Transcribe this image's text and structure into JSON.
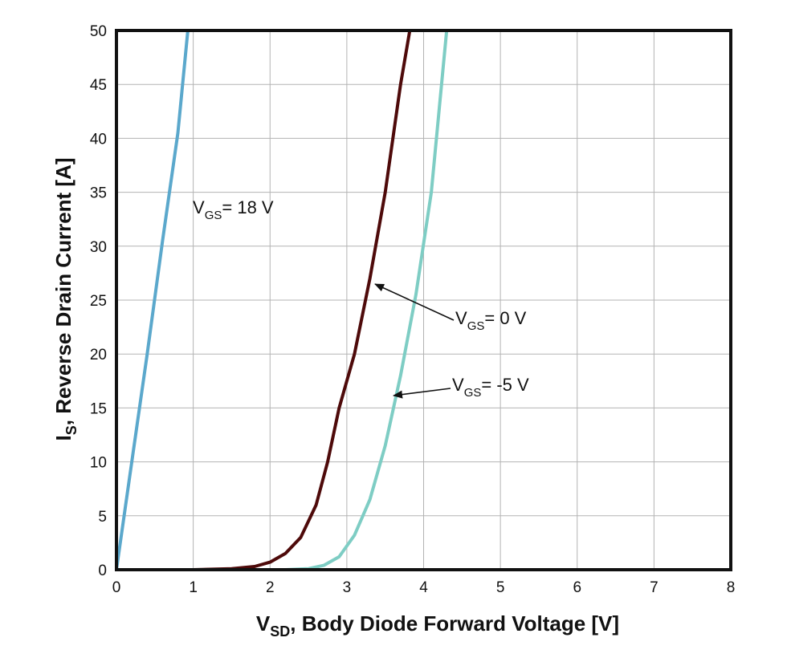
{
  "chart_data": {
    "type": "line",
    "xlabel": {
      "main": "V",
      "sub": "SD",
      "rest": ", Body Diode Forward Voltage [V]"
    },
    "ylabel": {
      "main": "I",
      "sub": "S",
      "rest": ", Reverse Drain Current [A]"
    },
    "xlim": [
      0,
      8
    ],
    "ylim": [
      0,
      50
    ],
    "x_ticks": [
      0,
      1,
      2,
      3,
      4,
      5,
      6,
      7,
      8
    ],
    "y_ticks": [
      0,
      5,
      10,
      15,
      20,
      25,
      30,
      35,
      40,
      45,
      50
    ],
    "grid": true,
    "series": [
      {
        "color": "#5ba8cc",
        "points": [
          [
            0,
            0
          ],
          [
            0.2,
            10
          ],
          [
            0.4,
            20
          ],
          [
            0.6,
            30.5
          ],
          [
            0.8,
            40.5
          ],
          [
            0.93,
            50
          ]
        ]
      },
      {
        "color": "#4e0a0a",
        "points": [
          [
            0,
            0
          ],
          [
            1.0,
            0
          ],
          [
            1.5,
            0.1
          ],
          [
            1.8,
            0.3
          ],
          [
            2.0,
            0.7
          ],
          [
            2.2,
            1.5
          ],
          [
            2.4,
            3.0
          ],
          [
            2.6,
            6.0
          ],
          [
            2.75,
            10.0
          ],
          [
            2.9,
            15.0
          ],
          [
            3.1,
            20.0
          ],
          [
            3.3,
            27.0
          ],
          [
            3.5,
            35.0
          ],
          [
            3.7,
            45.0
          ],
          [
            3.82,
            50.0
          ]
        ]
      },
      {
        "color": "#7ecdc4",
        "points": [
          [
            0,
            0
          ],
          [
            2.2,
            0
          ],
          [
            2.5,
            0.1
          ],
          [
            2.7,
            0.4
          ],
          [
            2.9,
            1.2
          ],
          [
            3.1,
            3.2
          ],
          [
            3.3,
            6.5
          ],
          [
            3.5,
            11.5
          ],
          [
            3.7,
            18.0
          ],
          [
            3.9,
            25.5
          ],
          [
            4.1,
            35.0
          ],
          [
            4.3,
            50.0
          ]
        ]
      }
    ],
    "annotations": [
      {
        "main": "V",
        "sub": "GS",
        "rest": "= 18 V"
      },
      {
        "main": "V",
        "sub": "GS",
        "rest": "= 0 V"
      },
      {
        "main": "V",
        "sub": "GS",
        "rest": "= -5 V"
      }
    ]
  }
}
